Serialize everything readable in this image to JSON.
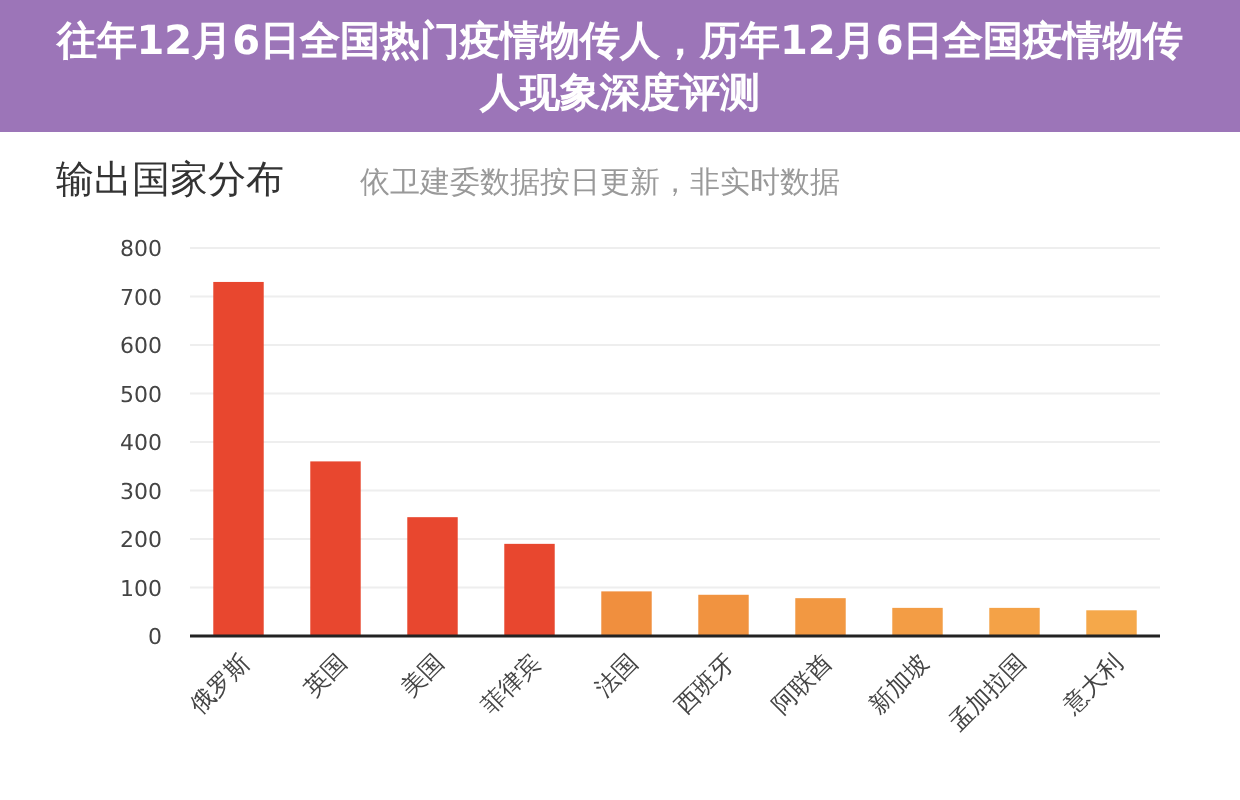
{
  "chart_data": {
    "type": "bar",
    "title": "输出国家分布",
    "subtitle": "依卫建委数据按日更新，非实时数据",
    "annotations": [
      "往年12月6日全国热门疫情物传人，历年12月6日全国疫情物传人现象深度评测"
    ],
    "categories": [
      "俄罗斯",
      "英国",
      "美国",
      "菲律宾",
      "法国",
      "西班牙",
      "阿联酋",
      "新加坡",
      "孟加拉国",
      "意大利"
    ],
    "values": [
      730,
      360,
      245,
      190,
      92,
      85,
      78,
      58,
      58,
      53
    ],
    "colors": [
      "#e8472f",
      "#e8472f",
      "#e8472f",
      "#e8472f",
      "#f08f3e",
      "#f19340",
      "#f29842",
      "#f39d45",
      "#f4a247",
      "#f5a84a"
    ],
    "ylim": [
      0,
      800
    ],
    "yticks": [
      0,
      100,
      200,
      300,
      400,
      500,
      600,
      700,
      800
    ],
    "grid": "y"
  }
}
